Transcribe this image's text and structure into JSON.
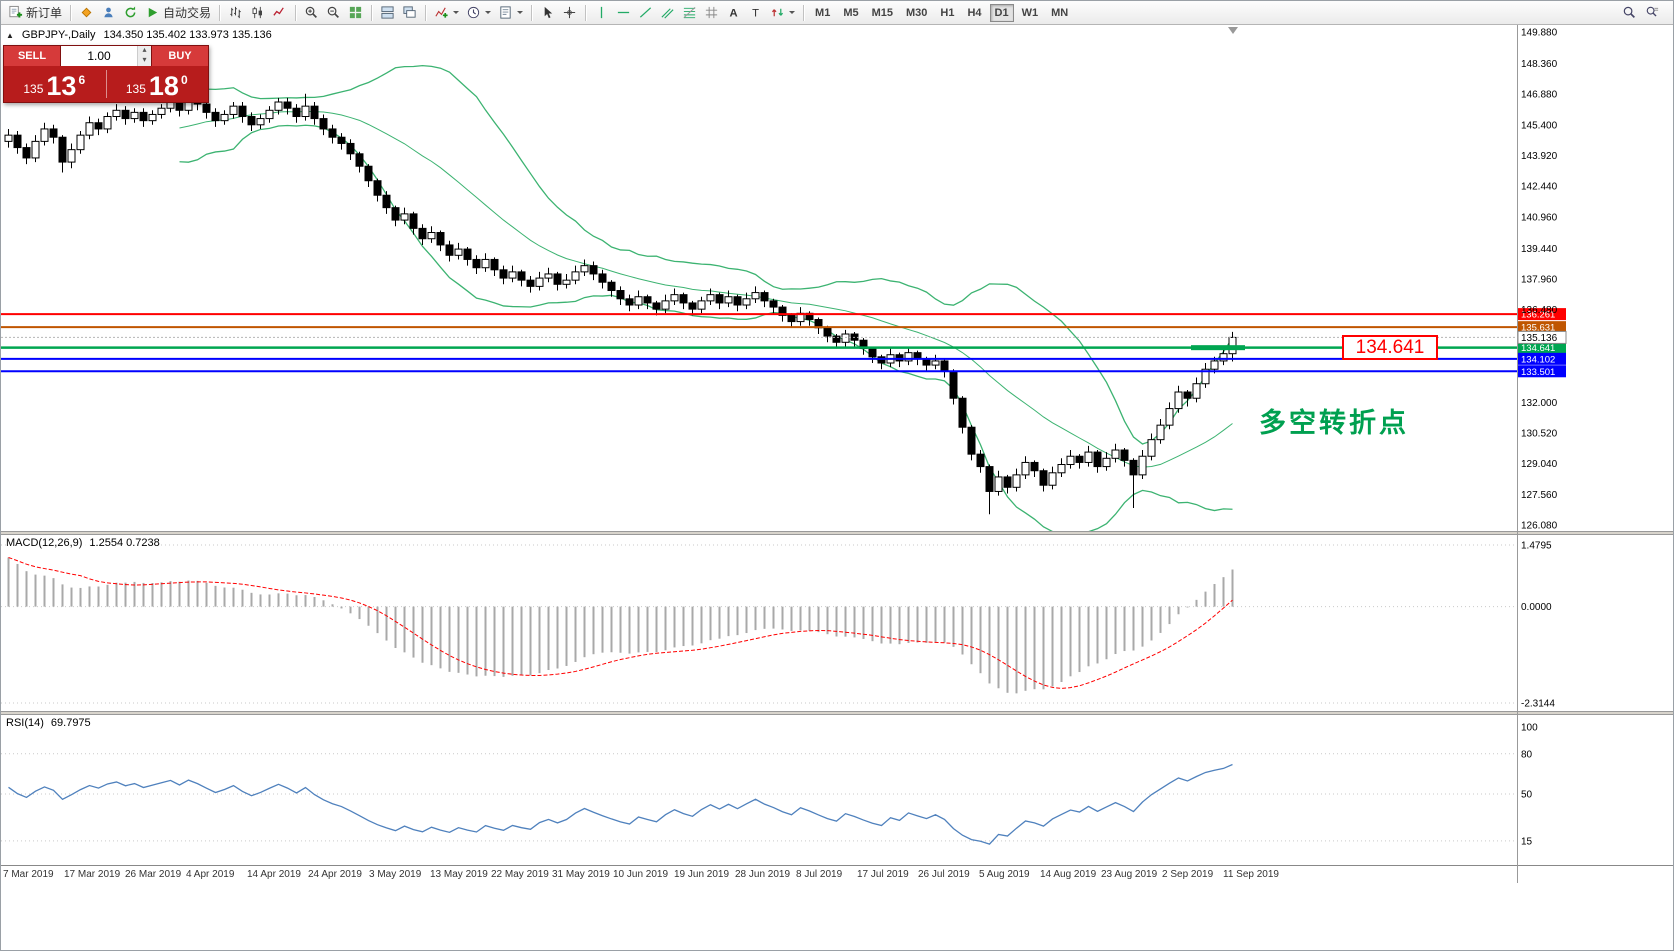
{
  "toolbar": {
    "groups": [
      {
        "items": [
          {
            "icon": "new-order-icon",
            "name": "new-order-button",
            "label": "新订单"
          }
        ]
      },
      {
        "items": [
          {
            "icon": "quotes-icon",
            "name": "quotes-button"
          },
          {
            "icon": "profile-icon",
            "name": "profile-button"
          },
          {
            "icon": "refresh-icon",
            "name": "refresh-button"
          },
          {
            "icon": "autotrade-icon",
            "name": "autotrade-button",
            "label": "自动交易"
          }
        ]
      },
      {
        "items": [
          {
            "icon": "bar-chart-icon",
            "name": "bar-chart-button"
          },
          {
            "icon": "candle-chart-icon",
            "name": "candle-chart-button"
          },
          {
            "icon": "line-chart-icon",
            "name": "line-chart-button"
          }
        ]
      },
      {
        "items": [
          {
            "icon": "zoom-in-icon",
            "name": "zoom-in-button"
          },
          {
            "icon": "zoom-out-icon",
            "name": "zoom-out-button"
          },
          {
            "icon": "tile-windows-icon",
            "name": "tile-windows-button"
          }
        ]
      },
      {
        "items": [
          {
            "icon": "window-tile-icon",
            "name": "window-tile-button"
          },
          {
            "icon": "window-cascade-icon",
            "name": "window-cascade-button"
          }
        ]
      },
      {
        "items": [
          {
            "icon": "indicators-icon",
            "name": "indicators-button",
            "dropdown": true
          },
          {
            "icon": "clock-icon",
            "name": "periods-button",
            "dropdown": true
          },
          {
            "icon": "template-icon",
            "name": "templates-button",
            "dropdown": true
          }
        ]
      },
      {
        "items": [
          {
            "icon": "cursor-icon",
            "name": "cursor-button"
          },
          {
            "icon": "crosshair-icon",
            "name": "crosshair-button"
          }
        ]
      },
      {
        "items": [
          {
            "icon": "vline-icon",
            "name": "vertical-line-button"
          },
          {
            "icon": "hline-icon",
            "name": "horizontal-line-button"
          },
          {
            "icon": "trendline-icon",
            "name": "trendline-button"
          },
          {
            "icon": "channel-icon",
            "name": "channel-button"
          },
          {
            "icon": "fibonacci-icon",
            "name": "fibonacci-button"
          },
          {
            "icon": "grid-icon",
            "name": "grid-button"
          },
          {
            "icon": "text-icon",
            "name": "text-button"
          },
          {
            "icon": "label-icon",
            "name": "label-button"
          },
          {
            "icon": "arrows-icon",
            "name": "arrows-button",
            "dropdown": true
          }
        ]
      }
    ],
    "timeframes": [
      "M1",
      "M5",
      "M15",
      "M30",
      "H1",
      "H4",
      "D1",
      "W1",
      "MN"
    ],
    "active_timeframe": "D1",
    "right_icons": [
      "search-icon",
      "search-chart-icon"
    ]
  },
  "symbol_bar": {
    "symbol": "GBPJPY-,Daily",
    "ohlc": "134.350 135.402 133.973 135.136"
  },
  "trade_panel": {
    "sell_label": "SELL",
    "buy_label": "BUY",
    "volume": "1.00",
    "sell_prefix": "135",
    "sell_big": "13",
    "sell_sup": "6",
    "buy_prefix": "135",
    "buy_big": "18",
    "buy_sup": "0"
  },
  "main_chart": {
    "y_max": 149.88,
    "y_min": 126.08,
    "annotation": "多空转折点",
    "callout": "134.641",
    "bid": {
      "price": 135.136,
      "label": "135.136"
    },
    "levels": [
      {
        "price": 136.261,
        "label": "136.261",
        "color": "#FF0000",
        "width": 2
      },
      {
        "price": 135.631,
        "label": "135.631",
        "color": "#C05500",
        "width": 2
      },
      {
        "price": 134.641,
        "label": "134.641",
        "color": "#00A651",
        "width": 2.5,
        "thick_segment": true
      },
      {
        "price": 134.102,
        "label": "134.102",
        "color": "#0000FF",
        "width": 2
      },
      {
        "price": 133.501,
        "label": "133.501",
        "color": "#0000FF",
        "width": 2
      }
    ],
    "price_axis": [
      149.88,
      148.36,
      146.88,
      145.4,
      143.92,
      142.44,
      140.96,
      139.44,
      137.96,
      136.48,
      132.0,
      130.52,
      129.04,
      127.56,
      126.08
    ]
  },
  "chart_data": {
    "type": "candlestick",
    "symbol": "GBPJPY",
    "timeframe": "Daily",
    "last_ohlc": {
      "open": 134.35,
      "high": 135.402,
      "low": 133.973,
      "close": 135.136
    },
    "overlays": [
      {
        "name": "Bollinger Bands",
        "period": 20,
        "deviation": 2,
        "color": "#3CB371"
      }
    ],
    "x_labels": [
      "7 Mar 2019",
      "17 Mar 2019",
      "26 Mar 2019",
      "4 Apr 2019",
      "14 Apr 2019",
      "24 Apr 2019",
      "3 May 2019",
      "13 May 2019",
      "22 May 2019",
      "31 May 2019",
      "10 Jun 2019",
      "19 Jun 2019",
      "28 Jun 2019",
      "8 Jul 2019",
      "17 Jul 2019",
      "26 Jul 2019",
      "5 Aug 2019",
      "14 Aug 2019",
      "23 Aug 2019",
      "2 Sep 2019",
      "11 Sep 2019"
    ],
    "ohlc": [
      [
        144.6,
        145.2,
        144.3,
        144.9
      ],
      [
        144.9,
        145.1,
        144.0,
        144.3
      ],
      [
        144.3,
        144.5,
        143.5,
        143.8
      ],
      [
        143.8,
        144.9,
        143.6,
        144.6
      ],
      [
        144.6,
        145.5,
        144.4,
        145.2
      ],
      [
        145.2,
        145.4,
        144.5,
        144.8
      ],
      [
        144.8,
        144.9,
        143.1,
        143.6
      ],
      [
        143.6,
        144.5,
        143.3,
        144.2
      ],
      [
        144.2,
        145.1,
        144.0,
        144.9
      ],
      [
        144.9,
        145.8,
        144.7,
        145.5
      ],
      [
        145.5,
        145.7,
        144.9,
        145.2
      ],
      [
        145.2,
        146.0,
        145.0,
        145.8
      ],
      [
        145.8,
        146.4,
        145.6,
        146.1
      ],
      [
        146.1,
        146.3,
        145.4,
        145.7
      ],
      [
        145.7,
        146.2,
        145.5,
        146.0
      ],
      [
        146.0,
        146.2,
        145.3,
        145.6
      ],
      [
        145.6,
        146.1,
        145.4,
        145.9
      ],
      [
        145.9,
        146.4,
        145.7,
        146.2
      ],
      [
        146.2,
        146.8,
        146.0,
        146.5
      ],
      [
        146.5,
        146.7,
        145.8,
        146.1
      ],
      [
        146.1,
        146.9,
        145.9,
        146.7
      ],
      [
        146.7,
        146.9,
        146.1,
        146.4
      ],
      [
        146.4,
        146.6,
        145.7,
        146.0
      ],
      [
        146.0,
        146.2,
        145.3,
        145.6
      ],
      [
        145.6,
        146.1,
        145.4,
        145.9
      ],
      [
        145.9,
        146.5,
        145.7,
        146.3
      ],
      [
        146.3,
        146.5,
        145.5,
        145.8
      ],
      [
        145.8,
        146.0,
        145.1,
        145.4
      ],
      [
        145.4,
        145.9,
        145.2,
        145.7
      ],
      [
        145.7,
        146.3,
        145.5,
        146.1
      ],
      [
        146.1,
        146.7,
        145.9,
        146.5
      ],
      [
        146.5,
        146.7,
        145.9,
        146.2
      ],
      [
        146.2,
        146.4,
        145.5,
        145.8
      ],
      [
        145.8,
        146.9,
        145.6,
        146.3
      ],
      [
        146.3,
        146.5,
        145.4,
        145.7
      ],
      [
        145.7,
        145.9,
        144.9,
        145.2
      ],
      [
        145.2,
        145.4,
        144.5,
        144.8
      ],
      [
        144.8,
        145.0,
        144.2,
        144.5
      ],
      [
        144.5,
        144.7,
        143.7,
        144.0
      ],
      [
        144.0,
        144.1,
        143.1,
        143.4
      ],
      [
        143.4,
        143.5,
        142.4,
        142.7
      ],
      [
        142.7,
        142.8,
        141.7,
        142.0
      ],
      [
        142.0,
        142.2,
        141.1,
        141.4
      ],
      [
        141.4,
        141.5,
        140.5,
        140.8
      ],
      [
        140.8,
        141.4,
        140.6,
        141.1
      ],
      [
        141.1,
        141.2,
        140.1,
        140.4
      ],
      [
        140.4,
        140.6,
        139.6,
        139.9
      ],
      [
        139.9,
        140.5,
        139.7,
        140.2
      ],
      [
        140.2,
        140.3,
        139.3,
        139.6
      ],
      [
        139.6,
        139.8,
        138.8,
        139.1
      ],
      [
        139.1,
        139.7,
        138.9,
        139.4
      ],
      [
        139.4,
        139.5,
        138.6,
        138.9
      ],
      [
        138.9,
        139.1,
        138.2,
        138.5
      ],
      [
        138.5,
        139.2,
        138.3,
        138.9
      ],
      [
        138.9,
        139.0,
        138.1,
        138.4
      ],
      [
        138.4,
        138.6,
        137.7,
        138.0
      ],
      [
        138.0,
        138.6,
        137.8,
        138.3
      ],
      [
        138.3,
        138.4,
        137.6,
        137.9
      ],
      [
        137.9,
        138.1,
        137.3,
        137.6
      ],
      [
        137.6,
        138.3,
        137.4,
        138.0
      ],
      [
        138.0,
        138.5,
        137.8,
        138.2
      ],
      [
        138.2,
        138.3,
        137.4,
        137.7
      ],
      [
        137.7,
        138.2,
        137.5,
        137.9
      ],
      [
        137.9,
        138.6,
        137.7,
        138.3
      ],
      [
        138.3,
        138.9,
        138.1,
        138.6
      ],
      [
        138.6,
        138.8,
        137.9,
        138.2
      ],
      [
        138.2,
        138.4,
        137.5,
        137.8
      ],
      [
        137.8,
        137.9,
        137.1,
        137.4
      ],
      [
        137.4,
        137.6,
        136.7,
        137.0
      ],
      [
        137.0,
        137.2,
        136.4,
        136.7
      ],
      [
        136.7,
        137.4,
        136.5,
        137.1
      ],
      [
        137.1,
        137.2,
        136.5,
        136.8
      ],
      [
        136.8,
        136.9,
        136.2,
        136.5
      ],
      [
        136.5,
        137.2,
        136.3,
        136.9
      ],
      [
        136.9,
        137.5,
        136.7,
        137.2
      ],
      [
        137.2,
        137.3,
        136.5,
        136.8
      ],
      [
        136.8,
        136.9,
        136.2,
        136.5
      ],
      [
        136.5,
        137.1,
        136.3,
        136.9
      ],
      [
        136.9,
        137.5,
        136.7,
        137.2
      ],
      [
        137.2,
        137.3,
        136.5,
        136.8
      ],
      [
        136.8,
        137.4,
        136.6,
        137.1
      ],
      [
        137.1,
        137.2,
        136.4,
        136.7
      ],
      [
        136.7,
        137.3,
        136.5,
        137.0
      ],
      [
        137.0,
        137.6,
        136.8,
        137.3
      ],
      [
        137.3,
        137.4,
        136.6,
        136.9
      ],
      [
        136.9,
        137.0,
        136.3,
        136.6
      ],
      [
        136.6,
        136.7,
        135.9,
        136.2
      ],
      [
        136.2,
        136.3,
        135.6,
        135.9
      ],
      [
        135.9,
        136.6,
        135.7,
        136.3
      ],
      [
        136.3,
        136.4,
        135.7,
        136.0
      ],
      [
        136.0,
        136.1,
        135.3,
        135.6
      ],
      [
        135.6,
        135.7,
        134.9,
        135.2
      ],
      [
        135.2,
        135.3,
        134.6,
        134.9
      ],
      [
        134.9,
        135.5,
        134.7,
        135.3
      ],
      [
        135.3,
        135.4,
        134.7,
        135.0
      ],
      [
        135.0,
        135.1,
        134.3,
        134.6
      ],
      [
        134.6,
        134.7,
        133.9,
        134.2
      ],
      [
        134.2,
        134.3,
        133.6,
        133.9
      ],
      [
        133.9,
        134.6,
        133.7,
        134.3
      ],
      [
        134.3,
        134.4,
        133.7,
        134.0
      ],
      [
        134.0,
        134.7,
        133.8,
        134.4
      ],
      [
        134.4,
        134.5,
        133.8,
        134.1
      ],
      [
        134.1,
        134.2,
        133.5,
        133.8
      ],
      [
        133.8,
        134.3,
        133.6,
        134.0
      ],
      [
        134.0,
        134.1,
        133.2,
        133.5
      ],
      [
        133.5,
        133.6,
        131.9,
        132.2
      ],
      [
        132.2,
        132.3,
        130.5,
        130.8
      ],
      [
        130.8,
        130.9,
        129.2,
        129.5
      ],
      [
        129.5,
        129.7,
        128.6,
        128.9
      ],
      [
        128.9,
        129.0,
        126.6,
        127.7
      ],
      [
        127.7,
        128.7,
        127.5,
        128.4
      ],
      [
        128.4,
        128.5,
        127.6,
        127.9
      ],
      [
        127.9,
        128.8,
        127.7,
        128.5
      ],
      [
        128.5,
        129.4,
        128.3,
        129.1
      ],
      [
        129.1,
        129.2,
        128.4,
        128.7
      ],
      [
        128.7,
        128.8,
        127.7,
        128.0
      ],
      [
        128.0,
        128.9,
        127.8,
        128.6
      ],
      [
        128.6,
        129.3,
        128.4,
        129.0
      ],
      [
        129.0,
        129.7,
        128.8,
        129.4
      ],
      [
        129.4,
        129.5,
        128.8,
        129.1
      ],
      [
        129.1,
        129.9,
        128.9,
        129.6
      ],
      [
        129.6,
        129.7,
        128.6,
        128.9
      ],
      [
        128.9,
        129.6,
        128.7,
        129.3
      ],
      [
        129.3,
        130.0,
        129.1,
        129.7
      ],
      [
        129.7,
        129.8,
        128.9,
        129.2
      ],
      [
        129.2,
        129.3,
        126.9,
        128.5
      ],
      [
        128.5,
        129.7,
        128.3,
        129.4
      ],
      [
        129.4,
        130.5,
        129.2,
        130.2
      ],
      [
        130.2,
        131.2,
        130.0,
        130.9
      ],
      [
        130.9,
        132.0,
        130.7,
        131.7
      ],
      [
        131.7,
        132.8,
        131.5,
        132.5
      ],
      [
        132.5,
        132.6,
        131.8,
        132.2
      ],
      [
        132.2,
        133.2,
        132.0,
        132.9
      ],
      [
        132.9,
        133.9,
        132.7,
        133.6
      ],
      [
        133.6,
        134.2,
        133.4,
        134.0
      ],
      [
        134.0,
        134.6,
        133.8,
        134.35
      ],
      [
        134.35,
        135.402,
        133.973,
        135.136
      ]
    ]
  },
  "macd_panel": {
    "label": "MACD(12,26,9)",
    "values": "1.2554 0.7238",
    "params": {
      "fast": 12,
      "slow": 26,
      "signal": 9
    },
    "scale": [
      "1.4795",
      "0.0000",
      "-2.3144"
    ],
    "scale_values": [
      1.4795,
      0,
      -2.3144
    ]
  },
  "rsi_panel": {
    "label": "RSI(14)",
    "value": "69.7975",
    "period": 14,
    "scale": [
      "100",
      "80",
      "50",
      "15"
    ],
    "scale_values": [
      100,
      80,
      50,
      15
    ]
  },
  "date_axis": {
    "labels": [
      "7 Mar 2019",
      "17 Mar 2019",
      "26 Mar 2019",
      "4 Apr 2019",
      "14 Apr 2019",
      "24 Apr 2019",
      "3 May 2019",
      "13 May 2019",
      "22 May 2019",
      "31 May 2019",
      "10 Jun 2019",
      "19 Jun 2019",
      "28 Jun 2019",
      "8 Jul 2019",
      "17 Jul 2019",
      "26 Jul 2019",
      "5 Aug 2019",
      "14 Aug 2019",
      "23 Aug 2019",
      "2 Sep 2019",
      "11 Sep 2019"
    ]
  },
  "colors": {
    "up": "#FFFFFF",
    "down": "#000000",
    "wick": "#000000",
    "bollinger": "#3CB371",
    "macd_hist": "#A9A9A9",
    "macd_signal": "#FF0000",
    "rsi": "#4F81BD",
    "annotation": "#00A050",
    "callout": "#FF0000"
  }
}
